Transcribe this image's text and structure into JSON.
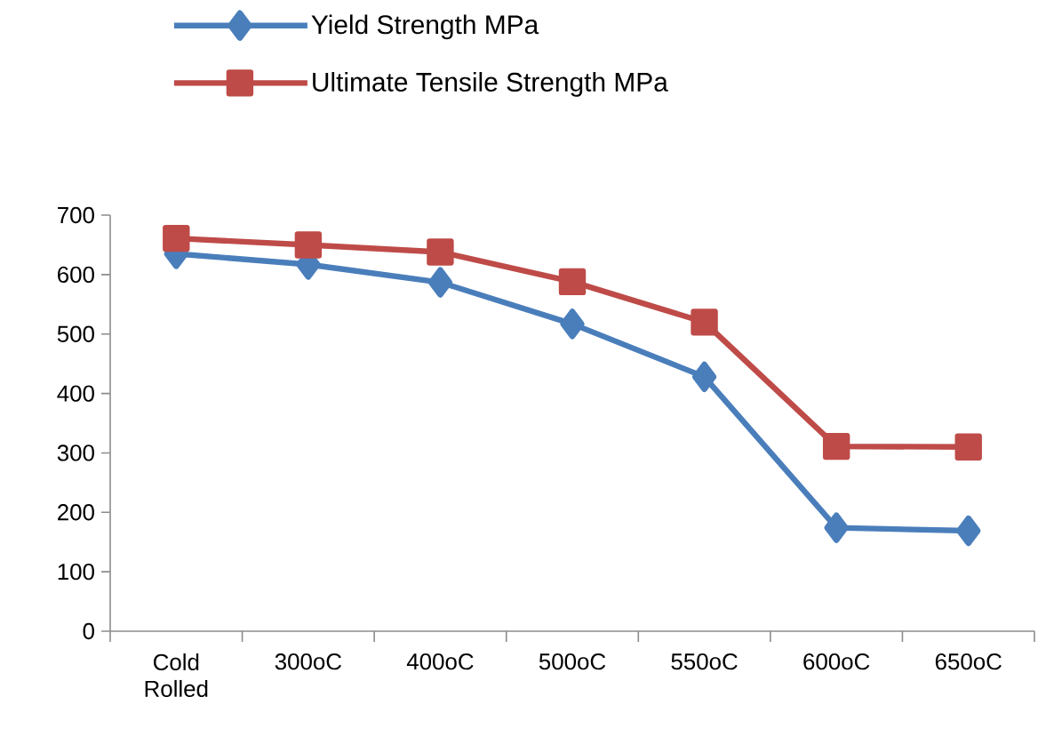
{
  "chart_data": {
    "type": "line",
    "categories": [
      "Cold Rolled",
      "300oC",
      "400oC",
      "500oC",
      "550oC",
      "600oC",
      "650oC"
    ],
    "series": [
      {
        "name": "Yield Strength MPa",
        "color": "#4a7ebb",
        "marker": "diamond",
        "values": [
          635,
          617,
          587,
          517,
          428,
          174,
          169
        ]
      },
      {
        "name": "Ultimate Tensile Strength MPa",
        "color": "#be4b48",
        "marker": "square",
        "values": [
          661,
          650,
          638,
          588,
          520,
          311,
          310
        ]
      }
    ],
    "ylim": [
      0,
      700
    ],
    "yticks": [
      0,
      100,
      200,
      300,
      400,
      500,
      600,
      700
    ],
    "grid": false,
    "legend": "top",
    "line_style": "solid"
  }
}
